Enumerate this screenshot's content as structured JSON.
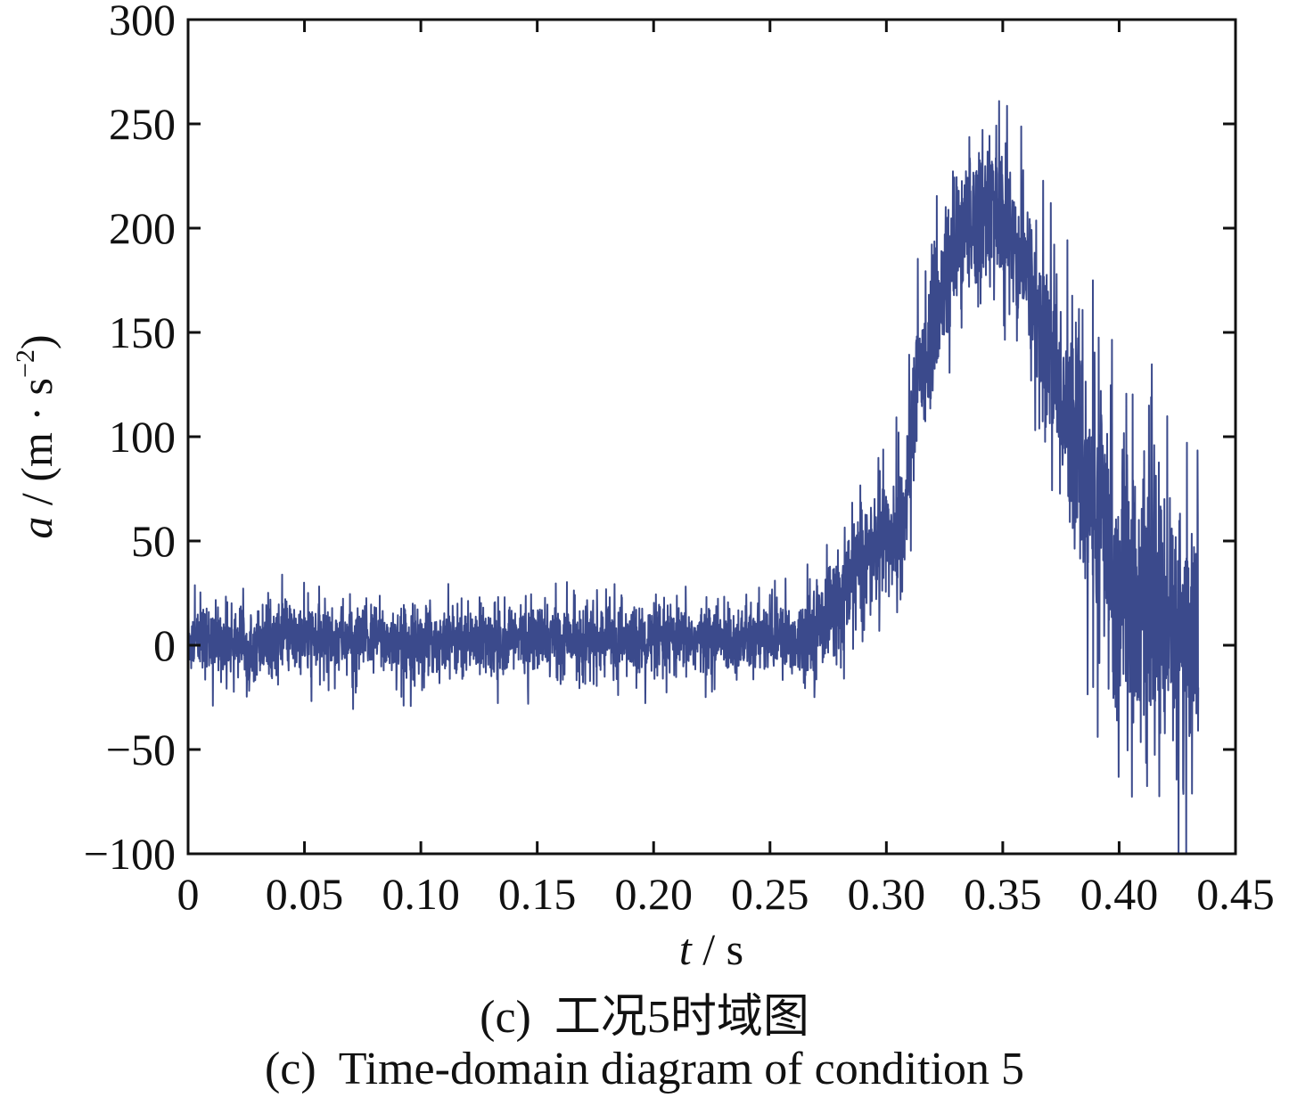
{
  "chart_data": {
    "type": "line",
    "xlabel_var": "t",
    "xlabel_unit": " / s",
    "ylabel_var": "a",
    "ylabel_unit": " / (m · s",
    "ylabel_sup": "−2",
    "ylabel_close": ")",
    "xlim": [
      0,
      0.45
    ],
    "ylim": [
      -100,
      300
    ],
    "xticks": [
      "0",
      "0.05",
      "0.10",
      "0.15",
      "0.20",
      "0.25",
      "0.30",
      "0.35",
      "0.40",
      "0.45"
    ],
    "yticks": [
      "300",
      "250",
      "200",
      "150",
      "100",
      "50",
      "0",
      "−50",
      "−100"
    ],
    "x_end": 0.434,
    "line_color": "#3b4a8c",
    "series": [
      {
        "envelope": {
          "x": [
            0.0,
            0.05,
            0.1,
            0.15,
            0.2,
            0.25,
            0.262,
            0.27,
            0.28,
            0.29,
            0.3,
            0.308,
            0.312,
            0.32,
            0.33,
            0.34,
            0.35,
            0.36,
            0.37,
            0.38,
            0.39,
            0.4,
            0.41,
            0.42,
            0.43,
            0.434
          ],
          "center": [
            2,
            3,
            2,
            3,
            2,
            3,
            3,
            8,
            22,
            40,
            52,
            55,
            120,
            155,
            190,
            208,
            205,
            180,
            140,
            100,
            65,
            30,
            20,
            12,
            5,
            8
          ],
          "spread": [
            15,
            15,
            15,
            15,
            15,
            15,
            16,
            20,
            22,
            24,
            26,
            28,
            28,
            30,
            30,
            32,
            32,
            34,
            38,
            45,
            60,
            70,
            60,
            55,
            60,
            55
          ]
        }
      }
    ]
  },
  "captions": {
    "cn": "(c)  工况5时域图",
    "en": "(c)  Time-domain diagram of condition 5"
  }
}
